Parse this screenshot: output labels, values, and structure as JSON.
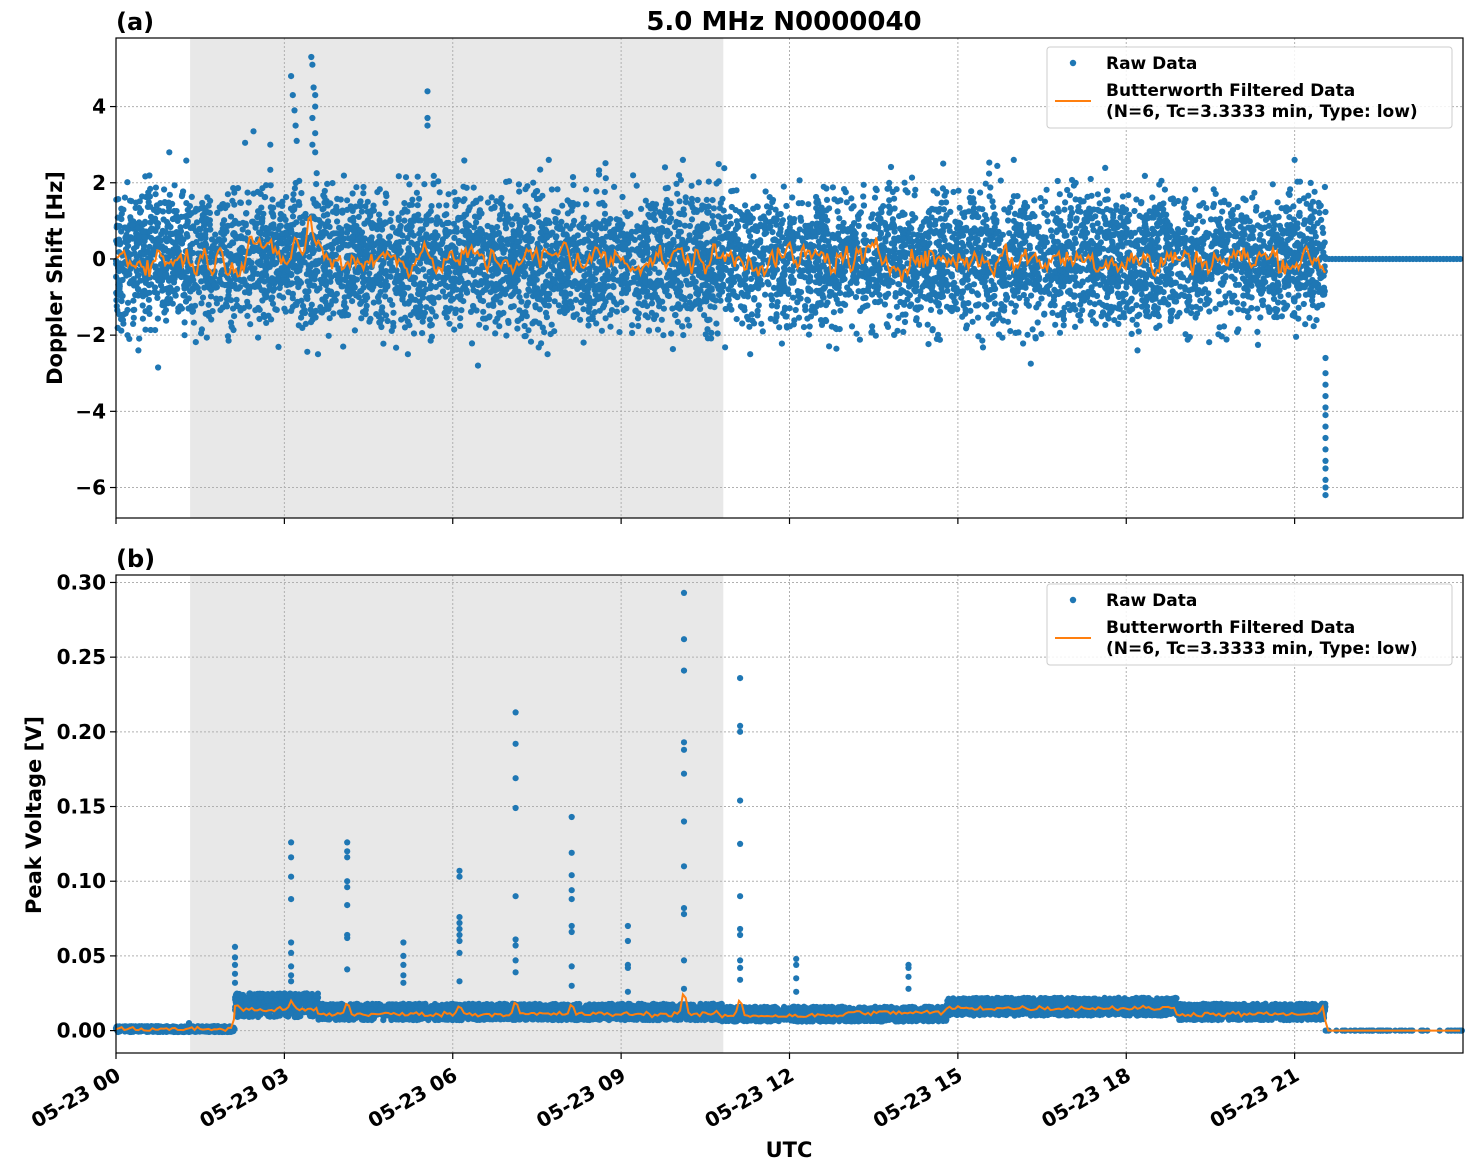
{
  "figure": {
    "title": "5.0 MHz N0000040",
    "xlabel": "UTC",
    "x_tick_labels": [
      "05-23 00",
      "05-23 03",
      "05-23 06",
      "05-23 09",
      "05-23 12",
      "05-23 15",
      "05-23 18",
      "05-23 21"
    ],
    "x_ticks_hours": [
      0,
      3,
      6,
      9,
      12,
      15,
      18,
      21
    ],
    "x_range_hours": [
      0,
      24
    ],
    "shaded_interval_hours": [
      1.32,
      10.82
    ],
    "shaded_color": "#e8e8e8",
    "raw_color": "#1f77b4",
    "filtered_color": "#ff7f0e"
  },
  "chart_data": [
    {
      "type": "scatter",
      "panel_label": "(a)",
      "ylabel": "Doppler Shift [Hz]",
      "ylim": [
        -6.8,
        5.8
      ],
      "y_ticks": [
        4,
        2,
        0,
        -2,
        -4,
        -6
      ],
      "y_tick_labels": [
        "4",
        "2",
        "0",
        "−2",
        "−4",
        "−6"
      ],
      "grid": true,
      "legend_position": "top-right",
      "legend": {
        "raw": "Raw Data",
        "filtered_line1": "Butterworth Filtered Data",
        "filtered_line2": "(N=6, Tc=3.3333 min, Type: low)"
      },
      "series": [
        {
          "name": "Raw Data",
          "style": "points",
          "band_hours": [
            0,
            21.55
          ],
          "band_typical_range": [
            -1.6,
            1.6
          ],
          "band_extreme_range": [
            -2.5,
            2.6
          ],
          "after_hours": 21.55,
          "after_value": 0,
          "outliers": [
            {
              "x": 0.4,
              "y": -2.4
            },
            {
              "x": 0.75,
              "y": -2.85
            },
            {
              "x": 0.95,
              "y": 2.8
            },
            {
              "x": 2.3,
              "y": 3.05
            },
            {
              "x": 2.45,
              "y": 3.35
            },
            {
              "x": 2.75,
              "y": 3.0
            },
            {
              "x": 3.12,
              "y": 4.8
            },
            {
              "x": 3.15,
              "y": 4.3
            },
            {
              "x": 3.18,
              "y": 3.9
            },
            {
              "x": 3.2,
              "y": 3.5
            },
            {
              "x": 3.22,
              "y": 3.1
            },
            {
              "x": 3.48,
              "y": 5.3
            },
            {
              "x": 3.5,
              "y": 5.1
            },
            {
              "x": 3.52,
              "y": 4.5
            },
            {
              "x": 3.55,
              "y": 4.3
            },
            {
              "x": 3.55,
              "y": 4.0
            },
            {
              "x": 3.5,
              "y": 3.7
            },
            {
              "x": 3.55,
              "y": 3.3
            },
            {
              "x": 3.5,
              "y": 3.0
            },
            {
              "x": 3.55,
              "y": 2.8
            },
            {
              "x": 3.6,
              "y": -2.5
            },
            {
              "x": 5.2,
              "y": -2.5
            },
            {
              "x": 5.55,
              "y": 4.4
            },
            {
              "x": 5.55,
              "y": 3.7
            },
            {
              "x": 5.55,
              "y": 3.5
            },
            {
              "x": 6.45,
              "y": -2.8
            },
            {
              "x": 10.1,
              "y": 2.6
            },
            {
              "x": 11.3,
              "y": -2.5
            },
            {
              "x": 16.3,
              "y": -2.75
            },
            {
              "x": 18.2,
              "y": -2.4
            },
            {
              "x": 21.0,
              "y": 2.6
            }
          ],
          "drop_hours": 21.55,
          "drop_values": [
            -2.6,
            -3.0,
            -3.3,
            -3.6,
            -3.9,
            -4.1,
            -4.4,
            -4.7,
            -5.0,
            -5.3,
            -5.5,
            -5.8,
            -6.0,
            -6.2
          ]
        },
        {
          "name": "Butterworth Filtered Data (N=6, Tc=3.3333 min, Type: low)",
          "style": "line",
          "baseline": 0,
          "noise_amplitude": 0.28,
          "features": [
            {
              "x": 2.4,
              "y": 0.7
            },
            {
              "x": 2.55,
              "y": 0.55
            },
            {
              "x": 3.2,
              "y": 0.6
            },
            {
              "x": 3.45,
              "y": 1.25
            },
            {
              "x": 3.6,
              "y": 0.5
            },
            {
              "x": 5.5,
              "y": 0.45
            },
            {
              "x": 5.7,
              "y": -0.4
            },
            {
              "x": 8.0,
              "y": 0.5
            },
            {
              "x": 18.5,
              "y": -0.5
            },
            {
              "x": 21.55,
              "y": -0.35
            }
          ],
          "end_hours": 21.55
        }
      ]
    },
    {
      "type": "scatter",
      "panel_label": "(b)",
      "ylabel": "Peak Voltage [V]",
      "ylim": [
        -0.015,
        0.305
      ],
      "y_ticks": [
        0.3,
        0.25,
        0.2,
        0.15,
        0.1,
        0.05,
        0.0
      ],
      "y_tick_labels": [
        "0.30",
        "0.25",
        "0.20",
        "0.15",
        "0.10",
        "0.05",
        "0.00"
      ],
      "grid": true,
      "legend_position": "top-right",
      "legend": {
        "raw": "Raw Data",
        "filtered_line1": "Butterworth Filtered Data",
        "filtered_line2": "(N=6, Tc=3.3333 min, Type: low)"
      },
      "series": [
        {
          "name": "Raw Data",
          "style": "points",
          "segments": [
            {
              "from": 0,
              "to": 2.12,
              "low": -0.001,
              "high": 0.003
            },
            {
              "from": 2.12,
              "to": 3.6,
              "low": 0.009,
              "high": 0.025
            },
            {
              "from": 3.6,
              "to": 10.8,
              "low": 0.007,
              "high": 0.018
            },
            {
              "from": 10.8,
              "to": 14.8,
              "low": 0.006,
              "high": 0.016
            },
            {
              "from": 14.8,
              "to": 18.9,
              "low": 0.01,
              "high": 0.022
            },
            {
              "from": 18.9,
              "to": 21.55,
              "low": 0.007,
              "high": 0.018
            },
            {
              "from": 21.55,
              "to": 24,
              "low": 0.0,
              "high": 0.0
            }
          ],
          "outliers": [
            {
              "x": 1.3,
              "y": 0.005
            },
            {
              "x": 2.12,
              "y": 0.056
            },
            {
              "x": 2.12,
              "y": 0.049
            },
            {
              "x": 2.12,
              "y": 0.044
            },
            {
              "x": 2.12,
              "y": 0.038
            },
            {
              "x": 2.12,
              "y": 0.032
            },
            {
              "x": 3.12,
              "y": 0.126
            },
            {
              "x": 3.12,
              "y": 0.116
            },
            {
              "x": 3.12,
              "y": 0.103
            },
            {
              "x": 3.12,
              "y": 0.088
            },
            {
              "x": 3.12,
              "y": 0.059
            },
            {
              "x": 3.12,
              "y": 0.052
            },
            {
              "x": 3.12,
              "y": 0.043
            },
            {
              "x": 3.12,
              "y": 0.037
            },
            {
              "x": 3.12,
              "y": 0.033
            },
            {
              "x": 4.12,
              "y": 0.126
            },
            {
              "x": 4.12,
              "y": 0.12
            },
            {
              "x": 4.12,
              "y": 0.116
            },
            {
              "x": 4.12,
              "y": 0.1
            },
            {
              "x": 4.12,
              "y": 0.096
            },
            {
              "x": 4.12,
              "y": 0.084
            },
            {
              "x": 4.12,
              "y": 0.064
            },
            {
              "x": 4.12,
              "y": 0.062
            },
            {
              "x": 4.12,
              "y": 0.041
            },
            {
              "x": 5.12,
              "y": 0.059
            },
            {
              "x": 5.12,
              "y": 0.05
            },
            {
              "x": 5.12,
              "y": 0.044
            },
            {
              "x": 5.12,
              "y": 0.037
            },
            {
              "x": 5.12,
              "y": 0.032
            },
            {
              "x": 6.12,
              "y": 0.107
            },
            {
              "x": 6.12,
              "y": 0.103
            },
            {
              "x": 6.12,
              "y": 0.076
            },
            {
              "x": 6.12,
              "y": 0.072
            },
            {
              "x": 6.12,
              "y": 0.068
            },
            {
              "x": 6.12,
              "y": 0.064
            },
            {
              "x": 6.12,
              "y": 0.06
            },
            {
              "x": 6.12,
              "y": 0.052
            },
            {
              "x": 6.12,
              "y": 0.033
            },
            {
              "x": 7.12,
              "y": 0.213
            },
            {
              "x": 7.12,
              "y": 0.192
            },
            {
              "x": 7.12,
              "y": 0.169
            },
            {
              "x": 7.12,
              "y": 0.149
            },
            {
              "x": 7.12,
              "y": 0.09
            },
            {
              "x": 7.12,
              "y": 0.061
            },
            {
              "x": 7.12,
              "y": 0.057
            },
            {
              "x": 7.12,
              "y": 0.047
            },
            {
              "x": 7.12,
              "y": 0.039
            },
            {
              "x": 8.12,
              "y": 0.143
            },
            {
              "x": 8.12,
              "y": 0.119
            },
            {
              "x": 8.12,
              "y": 0.104
            },
            {
              "x": 8.12,
              "y": 0.094
            },
            {
              "x": 8.12,
              "y": 0.088
            },
            {
              "x": 8.12,
              "y": 0.07
            },
            {
              "x": 8.12,
              "y": 0.066
            },
            {
              "x": 8.12,
              "y": 0.043
            },
            {
              "x": 8.12,
              "y": 0.03
            },
            {
              "x": 9.12,
              "y": 0.07
            },
            {
              "x": 9.12,
              "y": 0.06
            },
            {
              "x": 9.12,
              "y": 0.044
            },
            {
              "x": 9.12,
              "y": 0.042
            },
            {
              "x": 9.12,
              "y": 0.026
            },
            {
              "x": 10.12,
              "y": 0.293
            },
            {
              "x": 10.12,
              "y": 0.262
            },
            {
              "x": 10.12,
              "y": 0.241
            },
            {
              "x": 10.12,
              "y": 0.193
            },
            {
              "x": 10.12,
              "y": 0.188
            },
            {
              "x": 10.12,
              "y": 0.172
            },
            {
              "x": 10.12,
              "y": 0.14
            },
            {
              "x": 10.12,
              "y": 0.11
            },
            {
              "x": 10.12,
              "y": 0.082
            },
            {
              "x": 10.12,
              "y": 0.078
            },
            {
              "x": 10.12,
              "y": 0.047
            },
            {
              "x": 10.12,
              "y": 0.028
            },
            {
              "x": 11.12,
              "y": 0.236
            },
            {
              "x": 11.12,
              "y": 0.204
            },
            {
              "x": 11.12,
              "y": 0.2
            },
            {
              "x": 11.12,
              "y": 0.154
            },
            {
              "x": 11.12,
              "y": 0.125
            },
            {
              "x": 11.12,
              "y": 0.09
            },
            {
              "x": 11.12,
              "y": 0.068
            },
            {
              "x": 11.12,
              "y": 0.064
            },
            {
              "x": 11.12,
              "y": 0.047
            },
            {
              "x": 11.12,
              "y": 0.042
            },
            {
              "x": 11.12,
              "y": 0.034
            },
            {
              "x": 12.12,
              "y": 0.048
            },
            {
              "x": 12.12,
              "y": 0.044
            },
            {
              "x": 12.12,
              "y": 0.035
            },
            {
              "x": 12.12,
              "y": 0.026
            },
            {
              "x": 14.12,
              "y": 0.044
            },
            {
              "x": 14.12,
              "y": 0.042
            },
            {
              "x": 14.12,
              "y": 0.036
            },
            {
              "x": 14.12,
              "y": 0.028
            }
          ]
        },
        {
          "name": "Butterworth Filtered Data (N=6, Tc=3.3333 min, Type: low)",
          "style": "line",
          "levels": [
            {
              "from": 0,
              "to": 2.12,
              "y": 0.001
            },
            {
              "from": 2.12,
              "to": 3.6,
              "y": 0.014
            },
            {
              "from": 3.6,
              "to": 10.8,
              "y": 0.011
            },
            {
              "from": 10.8,
              "to": 13.0,
              "y": 0.01
            },
            {
              "from": 13.0,
              "to": 14.8,
              "y": 0.012
            },
            {
              "from": 14.8,
              "to": 18.9,
              "y": 0.015
            },
            {
              "from": 18.9,
              "to": 21.55,
              "y": 0.011
            },
            {
              "from": 21.55,
              "to": 24,
              "y": 0.0
            }
          ],
          "spikes": [
            {
              "x": 2.15,
              "y": 0.018
            },
            {
              "x": 3.12,
              "y": 0.02
            },
            {
              "x": 4.12,
              "y": 0.02
            },
            {
              "x": 6.12,
              "y": 0.018
            },
            {
              "x": 7.12,
              "y": 0.021
            },
            {
              "x": 8.12,
              "y": 0.019
            },
            {
              "x": 10.12,
              "y": 0.029
            },
            {
              "x": 11.12,
              "y": 0.023
            },
            {
              "x": 21.5,
              "y": 0.016
            }
          ]
        }
      ]
    }
  ]
}
